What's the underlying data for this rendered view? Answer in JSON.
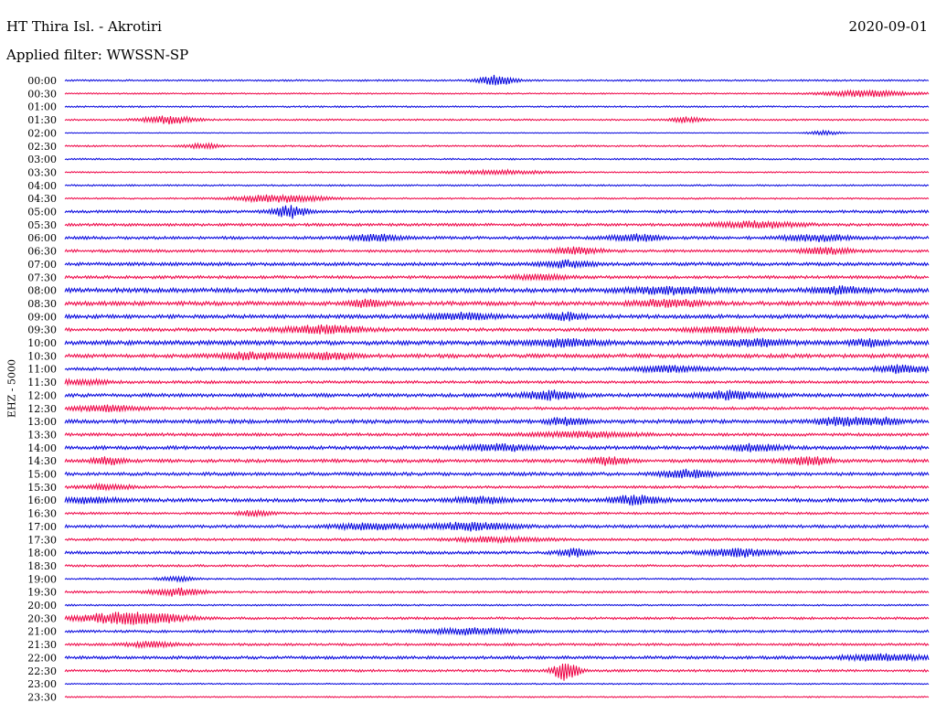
{
  "header": {
    "station": "HT Thira Isl. - Akrotiri",
    "date": "2020-09-01",
    "filter": "Applied filter: WWSSN-SP"
  },
  "colors": {
    "even_hour": "#0000dd",
    "half_hour": "#ee0044"
  },
  "chart_data": {
    "type": "line",
    "ylabel": "EHZ - 5000",
    "categories": [
      "00:00",
      "00:30",
      "01:00",
      "01:30",
      "02:00",
      "02:30",
      "03:00",
      "03:30",
      "04:00",
      "04:30",
      "05:00",
      "05:30",
      "06:00",
      "06:30",
      "07:00",
      "07:30",
      "08:00",
      "08:30",
      "09:00",
      "09:30",
      "10:00",
      "10:30",
      "11:00",
      "11:30",
      "12:00",
      "12:30",
      "13:00",
      "13:30",
      "14:00",
      "14:30",
      "15:00",
      "15:30",
      "16:00",
      "16:30",
      "17:00",
      "17:30",
      "18:00",
      "18:30",
      "19:00",
      "19:30",
      "20:00",
      "20:30",
      "21:00",
      "21:30",
      "22:00",
      "22:30",
      "23:00",
      "23:30"
    ],
    "series": [
      {
        "noise": 0.6,
        "bursts": [
          [
            0.5,
            0.02,
            4
          ]
        ]
      },
      {
        "noise": 0.5,
        "bursts": [
          [
            0.93,
            0.05,
            2.5
          ]
        ]
      },
      {
        "noise": 0.6,
        "bursts": []
      },
      {
        "noise": 0.6,
        "bursts": [
          [
            0.12,
            0.03,
            3
          ],
          [
            0.72,
            0.02,
            2
          ]
        ]
      },
      {
        "noise": 0.3,
        "bursts": [
          [
            0.88,
            0.02,
            1.5
          ]
        ]
      },
      {
        "noise": 0.6,
        "bursts": [
          [
            0.16,
            0.02,
            2
          ]
        ]
      },
      {
        "noise": 0.6,
        "bursts": []
      },
      {
        "noise": 0.5,
        "bursts": [
          [
            0.5,
            0.06,
            1.5
          ]
        ]
      },
      {
        "noise": 0.6,
        "bursts": []
      },
      {
        "noise": 0.6,
        "bursts": [
          [
            0.25,
            0.05,
            3
          ]
        ]
      },
      {
        "noise": 1.0,
        "bursts": [
          [
            0.26,
            0.02,
            5
          ]
        ]
      },
      {
        "noise": 1.0,
        "bursts": [
          [
            0.8,
            0.05,
            2.5
          ]
        ]
      },
      {
        "noise": 1.1,
        "bursts": [
          [
            0.36,
            0.03,
            2.5
          ],
          [
            0.66,
            0.03,
            2.5
          ],
          [
            0.87,
            0.04,
            2.5
          ]
        ]
      },
      {
        "noise": 1.0,
        "bursts": [
          [
            0.59,
            0.03,
            2.5
          ],
          [
            0.88,
            0.03,
            2.5
          ]
        ]
      },
      {
        "noise": 1.2,
        "bursts": [
          [
            0.58,
            0.03,
            2.5
          ]
        ]
      },
      {
        "noise": 1.1,
        "bursts": [
          [
            0.55,
            0.03,
            2
          ]
        ]
      },
      {
        "noise": 1.6,
        "bursts": [
          [
            0.7,
            0.05,
            2.5
          ],
          [
            0.9,
            0.03,
            2.5
          ]
        ]
      },
      {
        "noise": 1.5,
        "bursts": [
          [
            0.35,
            0.02,
            2.5
          ],
          [
            0.7,
            0.04,
            2.5
          ]
        ]
      },
      {
        "noise": 1.4,
        "bursts": [
          [
            0.46,
            0.04,
            2.5
          ],
          [
            0.58,
            0.02,
            3
          ]
        ]
      },
      {
        "noise": 1.2,
        "bursts": [
          [
            0.3,
            0.05,
            3
          ],
          [
            0.76,
            0.04,
            2
          ]
        ]
      },
      {
        "noise": 1.6,
        "bursts": [
          [
            0.58,
            0.04,
            2.5
          ],
          [
            0.8,
            0.04,
            2.5
          ],
          [
            0.93,
            0.02,
            2.5
          ]
        ]
      },
      {
        "noise": 1.4,
        "bursts": [
          [
            0.22,
            0.04,
            2.5
          ],
          [
            0.31,
            0.03,
            2.5
          ]
        ]
      },
      {
        "noise": 1.1,
        "bursts": [
          [
            0.7,
            0.04,
            2.5
          ],
          [
            0.97,
            0.03,
            3
          ]
        ]
      },
      {
        "noise": 1.0,
        "bursts": [
          [
            0.02,
            0.03,
            2
          ]
        ]
      },
      {
        "noise": 1.3,
        "bursts": [
          [
            0.56,
            0.03,
            3.5
          ],
          [
            0.77,
            0.04,
            3
          ]
        ]
      },
      {
        "noise": 1.0,
        "bursts": [
          [
            0.05,
            0.04,
            2.5
          ]
        ]
      },
      {
        "noise": 1.4,
        "bursts": [
          [
            0.58,
            0.02,
            3
          ],
          [
            0.9,
            0.03,
            3.5
          ],
          [
            0.95,
            0.02,
            2.5
          ]
        ]
      },
      {
        "noise": 1.1,
        "bursts": [
          [
            0.6,
            0.06,
            2
          ]
        ]
      },
      {
        "noise": 1.3,
        "bursts": [
          [
            0.5,
            0.04,
            2.5
          ],
          [
            0.8,
            0.03,
            2.5
          ]
        ]
      },
      {
        "noise": 1.2,
        "bursts": [
          [
            0.05,
            0.02,
            2.5
          ],
          [
            0.63,
            0.02,
            3.5
          ],
          [
            0.86,
            0.03,
            3
          ]
        ]
      },
      {
        "noise": 1.2,
        "bursts": [
          [
            0.72,
            0.03,
            3
          ]
        ]
      },
      {
        "noise": 0.9,
        "bursts": [
          [
            0.05,
            0.03,
            2
          ]
        ]
      },
      {
        "noise": 1.3,
        "bursts": [
          [
            0.03,
            0.03,
            2
          ],
          [
            0.48,
            0.03,
            2.5
          ],
          [
            0.66,
            0.03,
            3.5
          ]
        ]
      },
      {
        "noise": 0.8,
        "bursts": [
          [
            0.22,
            0.02,
            2
          ]
        ]
      },
      {
        "noise": 1.1,
        "bursts": [
          [
            0.35,
            0.04,
            2.5
          ],
          [
            0.47,
            0.05,
            3
          ]
        ]
      },
      {
        "noise": 0.9,
        "bursts": [
          [
            0.5,
            0.05,
            2
          ]
        ]
      },
      {
        "noise": 1.1,
        "bursts": [
          [
            0.59,
            0.02,
            3
          ],
          [
            0.78,
            0.04,
            3
          ]
        ]
      },
      {
        "noise": 0.8,
        "bursts": []
      },
      {
        "noise": 0.6,
        "bursts": [
          [
            0.13,
            0.02,
            2
          ]
        ]
      },
      {
        "noise": 0.8,
        "bursts": [
          [
            0.13,
            0.03,
            3
          ]
        ]
      },
      {
        "noise": 0.6,
        "bursts": []
      },
      {
        "noise": 0.9,
        "bursts": [
          [
            0.06,
            0.05,
            4
          ],
          [
            0.11,
            0.04,
            2.5
          ]
        ]
      },
      {
        "noise": 0.9,
        "bursts": [
          [
            0.47,
            0.05,
            2.5
          ]
        ]
      },
      {
        "noise": 0.9,
        "bursts": [
          [
            0.1,
            0.03,
            2
          ]
        ]
      },
      {
        "noise": 1.1,
        "bursts": [
          [
            0.95,
            0.05,
            2.5
          ]
        ]
      },
      {
        "noise": 0.9,
        "bursts": [
          [
            0.58,
            0.015,
            8
          ]
        ]
      },
      {
        "noise": 0.5,
        "bursts": []
      },
      {
        "noise": 0.5,
        "bursts": []
      }
    ]
  }
}
